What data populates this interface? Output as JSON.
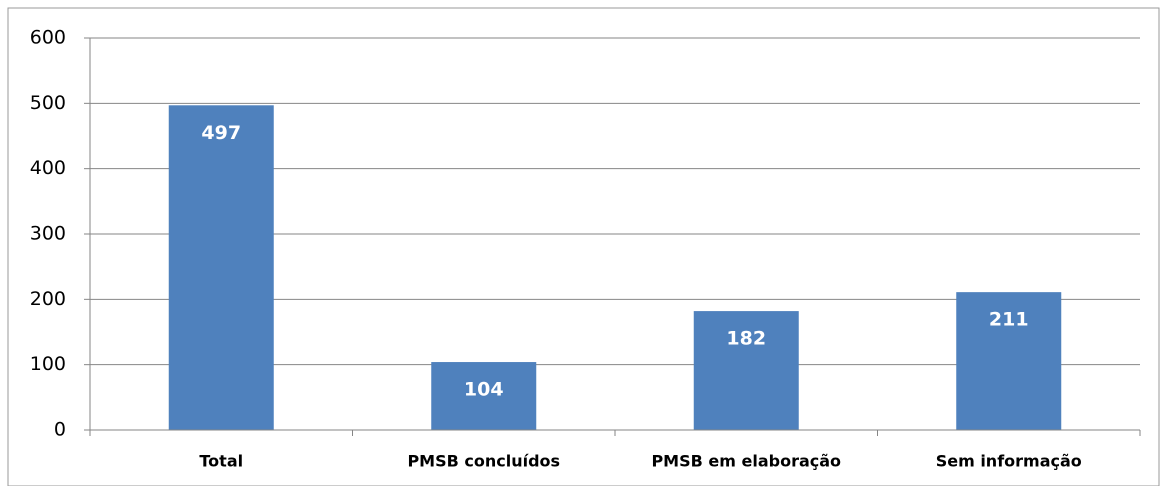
{
  "chart_data": {
    "type": "bar",
    "categories": [
      "Total",
      "PMSB concluídos",
      "PMSB em elaboração",
      "Sem informação"
    ],
    "values": [
      497,
      104,
      182,
      211
    ],
    "color": "#4f81bd",
    "ylim": [
      0,
      600
    ],
    "yticks": [
      0,
      100,
      200,
      300,
      400,
      500,
      600
    ],
    "grid": true
  }
}
